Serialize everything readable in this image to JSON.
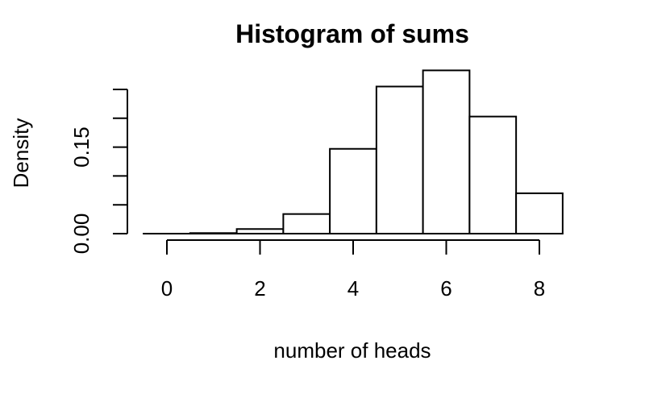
{
  "chart_data": {
    "type": "bar",
    "title": "Histogram of sums",
    "xlabel": "number of heads",
    "ylabel": "Density",
    "bins": [
      {
        "left": -0.5,
        "right": 0.5,
        "density": 0.0
      },
      {
        "left": 0.5,
        "right": 1.5,
        "density": 0.001
      },
      {
        "left": 1.5,
        "right": 2.5,
        "density": 0.008
      },
      {
        "left": 2.5,
        "right": 3.5,
        "density": 0.034
      },
      {
        "left": 3.5,
        "right": 4.5,
        "density": 0.147
      },
      {
        "left": 4.5,
        "right": 5.5,
        "density": 0.255
      },
      {
        "left": 5.5,
        "right": 6.5,
        "density": 0.283
      },
      {
        "left": 6.5,
        "right": 7.5,
        "density": 0.203
      },
      {
        "left": 7.5,
        "right": 8.5,
        "density": 0.07
      }
    ],
    "xlim": [
      -0.5,
      8.5
    ],
    "ylim": [
      0,
      0.25
    ],
    "x_ticks": [
      0,
      2,
      4,
      6,
      8
    ],
    "x_tick_labels": [
      "0",
      "2",
      "4",
      "6",
      "8"
    ],
    "y_ticks": [
      0,
      0.05,
      0.1,
      0.15,
      0.2,
      0.25
    ],
    "y_tick_labels": [
      "0.00",
      "",
      "",
      "0.15",
      "",
      ""
    ],
    "grid": false,
    "legend": "none"
  }
}
